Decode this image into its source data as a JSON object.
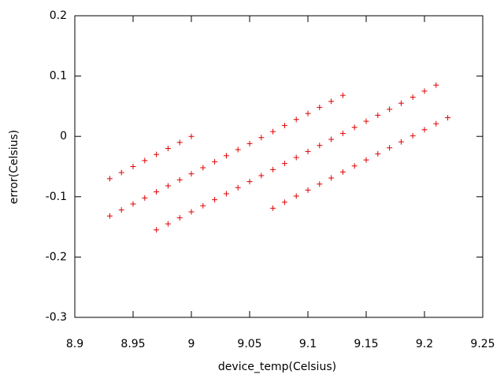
{
  "chart_data": {
    "type": "scatter",
    "xlabel": "device_temp(Celsius)",
    "ylabel": "error(Celsius)",
    "color": "#e00000",
    "marker": "+",
    "x": [
      8.93,
      8.94,
      8.95,
      8.96,
      8.97,
      8.98,
      8.99,
      9.0,
      8.93,
      8.94,
      8.95,
      8.96,
      8.97,
      8.98,
      8.99,
      9.0,
      9.01,
      9.02,
      9.03,
      9.04,
      9.05,
      9.06,
      9.07,
      9.08,
      9.09,
      9.1,
      9.11,
      9.12,
      9.13,
      8.97,
      8.98,
      8.99,
      9.0,
      9.01,
      9.02,
      9.03,
      9.04,
      9.05,
      9.06,
      9.07,
      9.08,
      9.09,
      9.1,
      9.11,
      9.12,
      9.13,
      9.14,
      9.15,
      9.16,
      9.17,
      9.18,
      9.19,
      9.2,
      9.21,
      9.07,
      9.08,
      9.09,
      9.1,
      9.11,
      9.12,
      9.13,
      9.14,
      9.15,
      9.16,
      9.17,
      9.18,
      9.19,
      9.2,
      9.21,
      9.22
    ],
    "y": [
      -0.07,
      -0.06,
      -0.05,
      -0.04,
      -0.03,
      -0.02,
      -0.01,
      0,
      -0.132,
      -0.122,
      -0.112,
      -0.102,
      -0.092,
      -0.082,
      -0.072,
      -0.062,
      -0.052,
      -0.042,
      -0.032,
      -0.022,
      -0.012,
      -0.002,
      0.008,
      0.018,
      0.028,
      0.038,
      0.048,
      0.058,
      0.068,
      -0.155,
      -0.145,
      -0.135,
      -0.125,
      -0.115,
      -0.105,
      -0.095,
      -0.085,
      -0.075,
      -0.065,
      -0.055,
      -0.045,
      -0.035,
      -0.025,
      -0.015,
      -0.005,
      0.005,
      0.015,
      0.025,
      0.035,
      0.045,
      0.055,
      0.065,
      0.075,
      0.085,
      -0.119,
      -0.109,
      -0.099,
      -0.089,
      -0.079,
      -0.069,
      -0.059,
      -0.049,
      -0.039,
      -0.029,
      -0.019,
      -0.009,
      0.001,
      0.011,
      0.021,
      0.031
    ],
    "xlim": [
      8.9,
      9.25
    ],
    "xticks": [
      8.9,
      8.95,
      9,
      9.05,
      9.1,
      9.15,
      9.2,
      9.25
    ],
    "ylim": [
      -0.3,
      0.2
    ],
    "yticks": [
      -0.3,
      -0.2,
      -0.1,
      0,
      0.1,
      0.2
    ],
    "grid": false
  }
}
